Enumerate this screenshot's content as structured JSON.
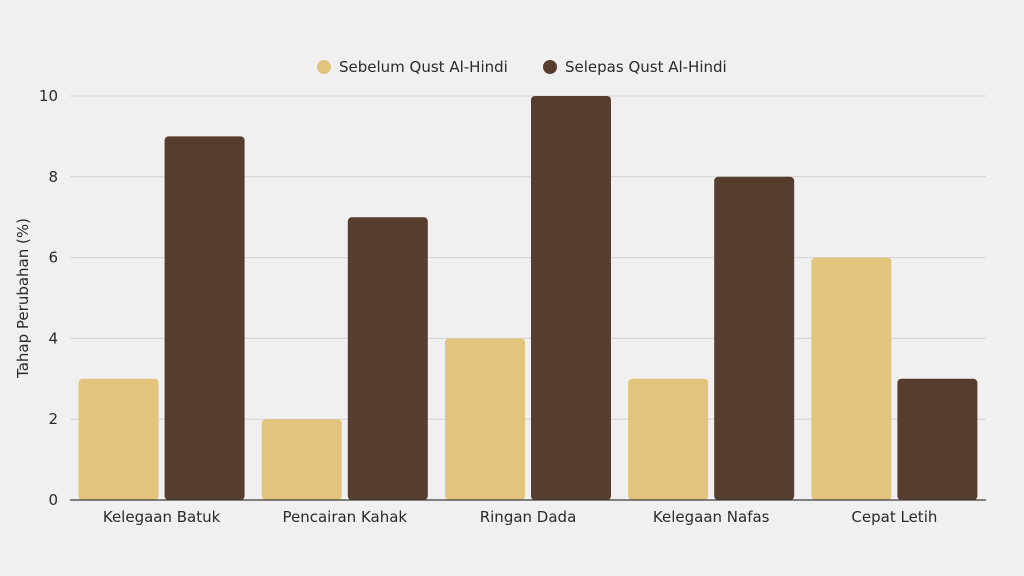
{
  "chart_data": {
    "type": "bar",
    "title": "",
    "xlabel": "",
    "ylabel": "Tahap Perubahan (%)",
    "ylim": [
      0,
      10
    ],
    "yticks": [
      0,
      2,
      4,
      6,
      8,
      10
    ],
    "grid": true,
    "legend_position": "top-center",
    "categories": [
      "Kelegaan Batuk",
      "Pencairan Kahak",
      "Ringan Dada",
      "Kelegaan Nafas",
      "Cepat Letih"
    ],
    "series": [
      {
        "name": "Sebelum Qust Al-Hindi",
        "color": "#e2c47c",
        "values": [
          3,
          2,
          4,
          3,
          6
        ]
      },
      {
        "name": "Selepas Qust Al-Hindi",
        "color": "#563d2e",
        "values": [
          9,
          7,
          10,
          8,
          3
        ]
      }
    ],
    "colors": {
      "background": "#f0f0f0",
      "grid": "#d3d3d3",
      "axis": "#3a3a3a",
      "text": "#2a2a2a"
    }
  }
}
